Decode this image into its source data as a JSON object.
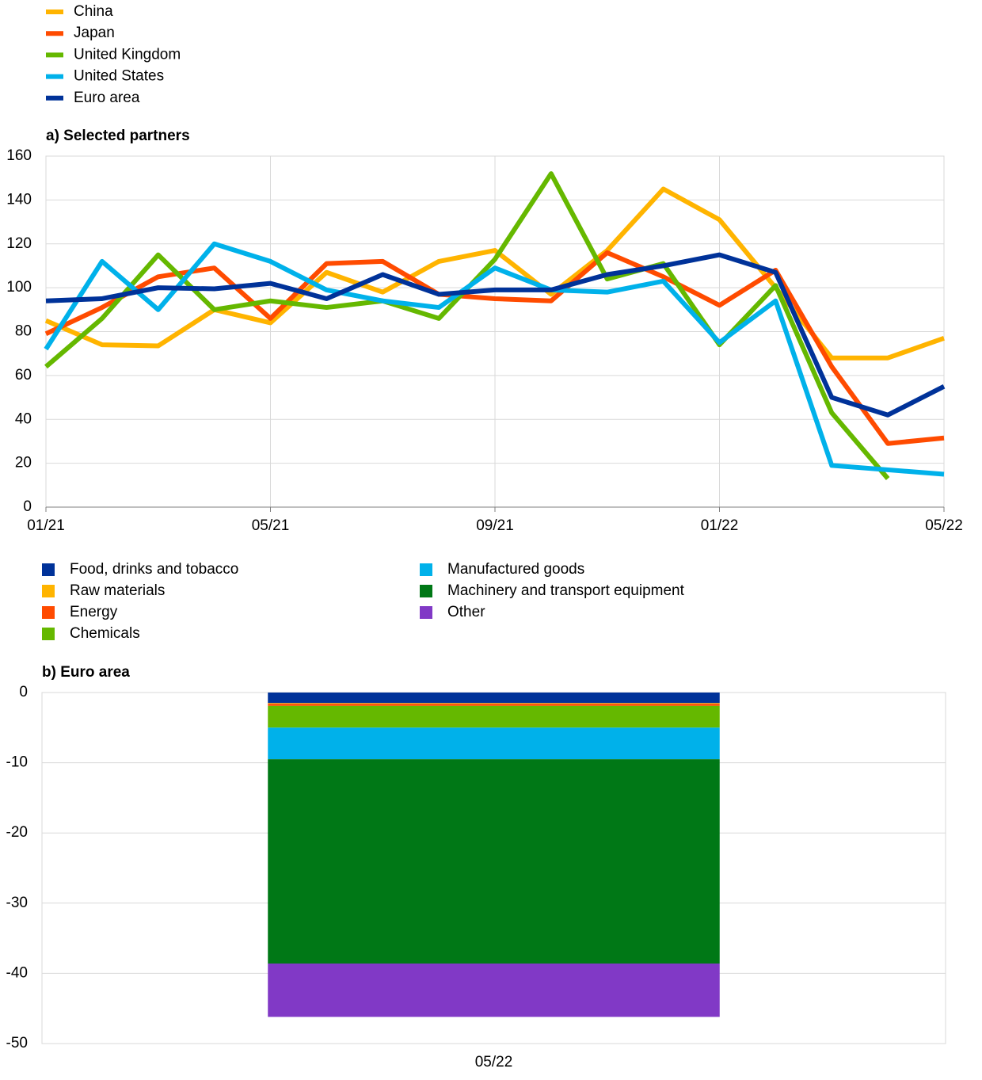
{
  "chart_data": [
    {
      "type": "line",
      "title": "a) Selected partners",
      "categories": [
        "01/21",
        null,
        null,
        null,
        "05/21",
        null,
        null,
        null,
        "09/21",
        null,
        null,
        null,
        "01/22",
        null,
        null,
        null,
        "05/22"
      ],
      "series": [
        {
          "name": "China",
          "color": "#ffb400",
          "values": [
            85,
            74,
            73.5,
            90,
            84,
            107,
            98,
            112,
            117,
            97,
            117,
            145,
            131,
            100,
            68,
            68,
            77
          ]
        },
        {
          "name": "Japan",
          "color": "#ff4b00",
          "values": [
            79,
            91,
            105,
            109,
            86,
            111,
            112,
            97,
            95,
            94,
            116,
            105,
            92,
            108,
            64,
            29,
            31.5
          ]
        },
        {
          "name": "United Kingdom",
          "color": "#65b800",
          "values": [
            64,
            86,
            115,
            90,
            94,
            91,
            94,
            86,
            113,
            152,
            104,
            111,
            74,
            101,
            43,
            13,
            null
          ]
        },
        {
          "name": "United States",
          "color": "#00b1ea",
          "values": [
            72,
            112,
            90,
            120,
            112,
            99,
            94,
            91,
            109,
            99,
            98,
            103,
            75,
            94,
            19,
            17,
            15
          ]
        },
        {
          "name": "Euro area",
          "color": "#003299",
          "values": [
            94,
            95,
            100,
            99.5,
            102,
            95,
            106,
            97,
            99,
            99,
            106,
            110,
            115,
            107,
            50,
            42,
            55
          ]
        }
      ],
      "ylim": [
        0,
        160
      ],
      "yticks": [
        0,
        20,
        40,
        60,
        80,
        100,
        120,
        140,
        160
      ],
      "grid": true,
      "legend": "top-left"
    },
    {
      "type": "stacked-bar",
      "title": "b) Euro area",
      "categories": [
        "05/22"
      ],
      "series": [
        {
          "name": "Food, drinks and tobacco",
          "color": "#003299",
          "values": [
            -1.5
          ]
        },
        {
          "name": "Raw materials",
          "color": "#ffb400",
          "values": [
            -0.1
          ]
        },
        {
          "name": "Energy",
          "color": "#ff4b00",
          "values": [
            -0.3
          ]
        },
        {
          "name": "Chemicals",
          "color": "#65b800",
          "values": [
            -3.1
          ]
        },
        {
          "name": "Manufactured goods",
          "color": "#00b1ea",
          "values": [
            -4.5
          ]
        },
        {
          "name": "Machinery and transport equipment",
          "color": "#007816",
          "values": [
            -29.1
          ]
        },
        {
          "name": "Other",
          "color": "#8139c6",
          "values": [
            -7.6
          ]
        }
      ],
      "ylim": [
        -50,
        0
      ],
      "yticks": [
        0,
        -10,
        -20,
        -30,
        -40,
        -50
      ],
      "grid": true,
      "legend": "top-left"
    }
  ]
}
